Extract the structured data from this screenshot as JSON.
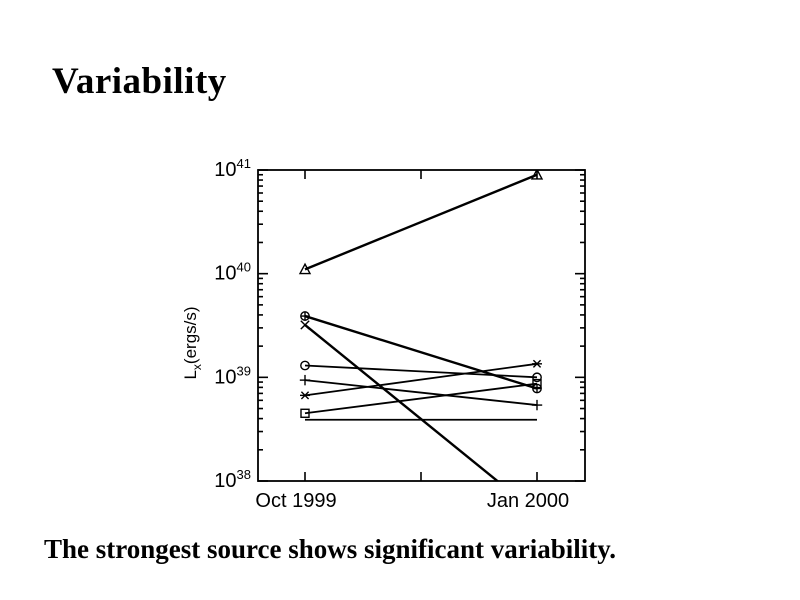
{
  "slide": {
    "title": "Variability",
    "caption": "The strongest source shows significant variability."
  },
  "colors": {
    "foreground": "#000000",
    "background": "#ffffff"
  },
  "chart_data": {
    "type": "line",
    "title": "",
    "xlabel": "",
    "ylabel": "Lx(ergs/s)",
    "ylabel_main": "L",
    "ylabel_sub": "x",
    "ylabel_rest": "(ergs/s)",
    "y_scale": "log",
    "ylim": [
      1e+38,
      1e+41
    ],
    "y_tick_exponents": [
      41,
      40,
      39,
      38
    ],
    "x_categories": [
      "Oct 1999",
      "Jan 2000"
    ],
    "grid": false,
    "legend": "none",
    "series": [
      {
        "name": "source-triangle",
        "marker": "triangle",
        "values": [
          1.1e+40,
          9e+40
        ],
        "lw": 2.4
      },
      {
        "name": "source-circle-plus",
        "marker": "circle-plus",
        "values": [
          3.9e+39,
          7.8e+38
        ],
        "lw": 2.4
      },
      {
        "name": "source-x-cross",
        "marker": "x",
        "values": [
          3.2e+39,
          4.9e+37
        ],
        "lw": 2.4,
        "note": "drops below 1e38; line clipped at bottom axis before Jan 2000"
      },
      {
        "name": "source-circle",
        "marker": "circle",
        "values": [
          1.3e+39,
          1e+39
        ],
        "lw": 1.8
      },
      {
        "name": "source-plus",
        "marker": "plus",
        "values": [
          9.4e+38,
          5.4e+38
        ],
        "lw": 1.8
      },
      {
        "name": "source-asterisk",
        "marker": "asterisk",
        "values": [
          6.7e+38,
          1.35e+39
        ],
        "lw": 1.8
      },
      {
        "name": "source-square",
        "marker": "square",
        "values": [
          4.5e+38,
          8.7e+38
        ],
        "lw": 1.8
      },
      {
        "name": "source-flat",
        "marker": "none",
        "values": [
          3.9e+38,
          3.9e+38
        ],
        "lw": 1.8
      }
    ]
  }
}
